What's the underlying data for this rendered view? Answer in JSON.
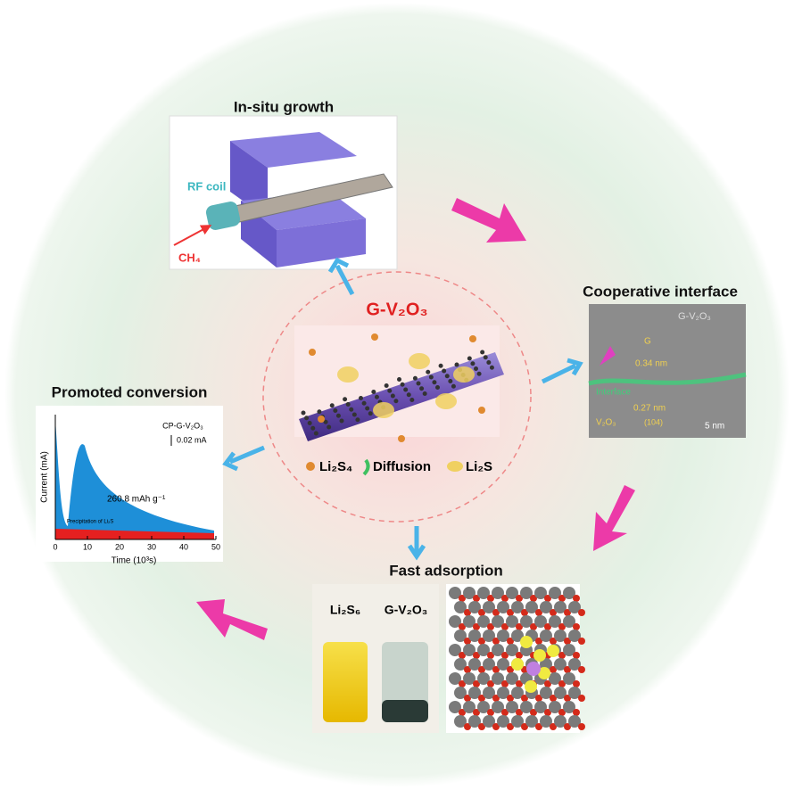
{
  "center": {
    "title": "G-V₂O₃",
    "legend": [
      "Li₂S₄",
      "Diffusion",
      "Li₂S"
    ]
  },
  "panels": {
    "growth": {
      "title": "In-situ growth",
      "labels": [
        "RF coil",
        "CH₄"
      ]
    },
    "interface": {
      "title": "Cooperative interface",
      "labels": [
        "G-V₂O₃",
        "G",
        "0.34 nm",
        "Interface",
        "0.27 nm",
        "V₂O₃",
        "(104)",
        "5 nm"
      ]
    },
    "conversion": {
      "title": "Promoted conversion",
      "sample": "CP-G-V₂O₃",
      "scale": "0.02 mA",
      "capacity": "260.8 mAh g⁻¹",
      "annotation": "Precipitation of Li₂S",
      "y_label": "Current (mA)",
      "x_label": "Time (10³s)",
      "xticks": [
        0,
        10,
        20,
        30,
        40,
        50
      ]
    },
    "adsorption": {
      "title": "Fast adsorption",
      "labels": [
        "Li₂S₆",
        "G-V₂O₃"
      ]
    }
  }
}
